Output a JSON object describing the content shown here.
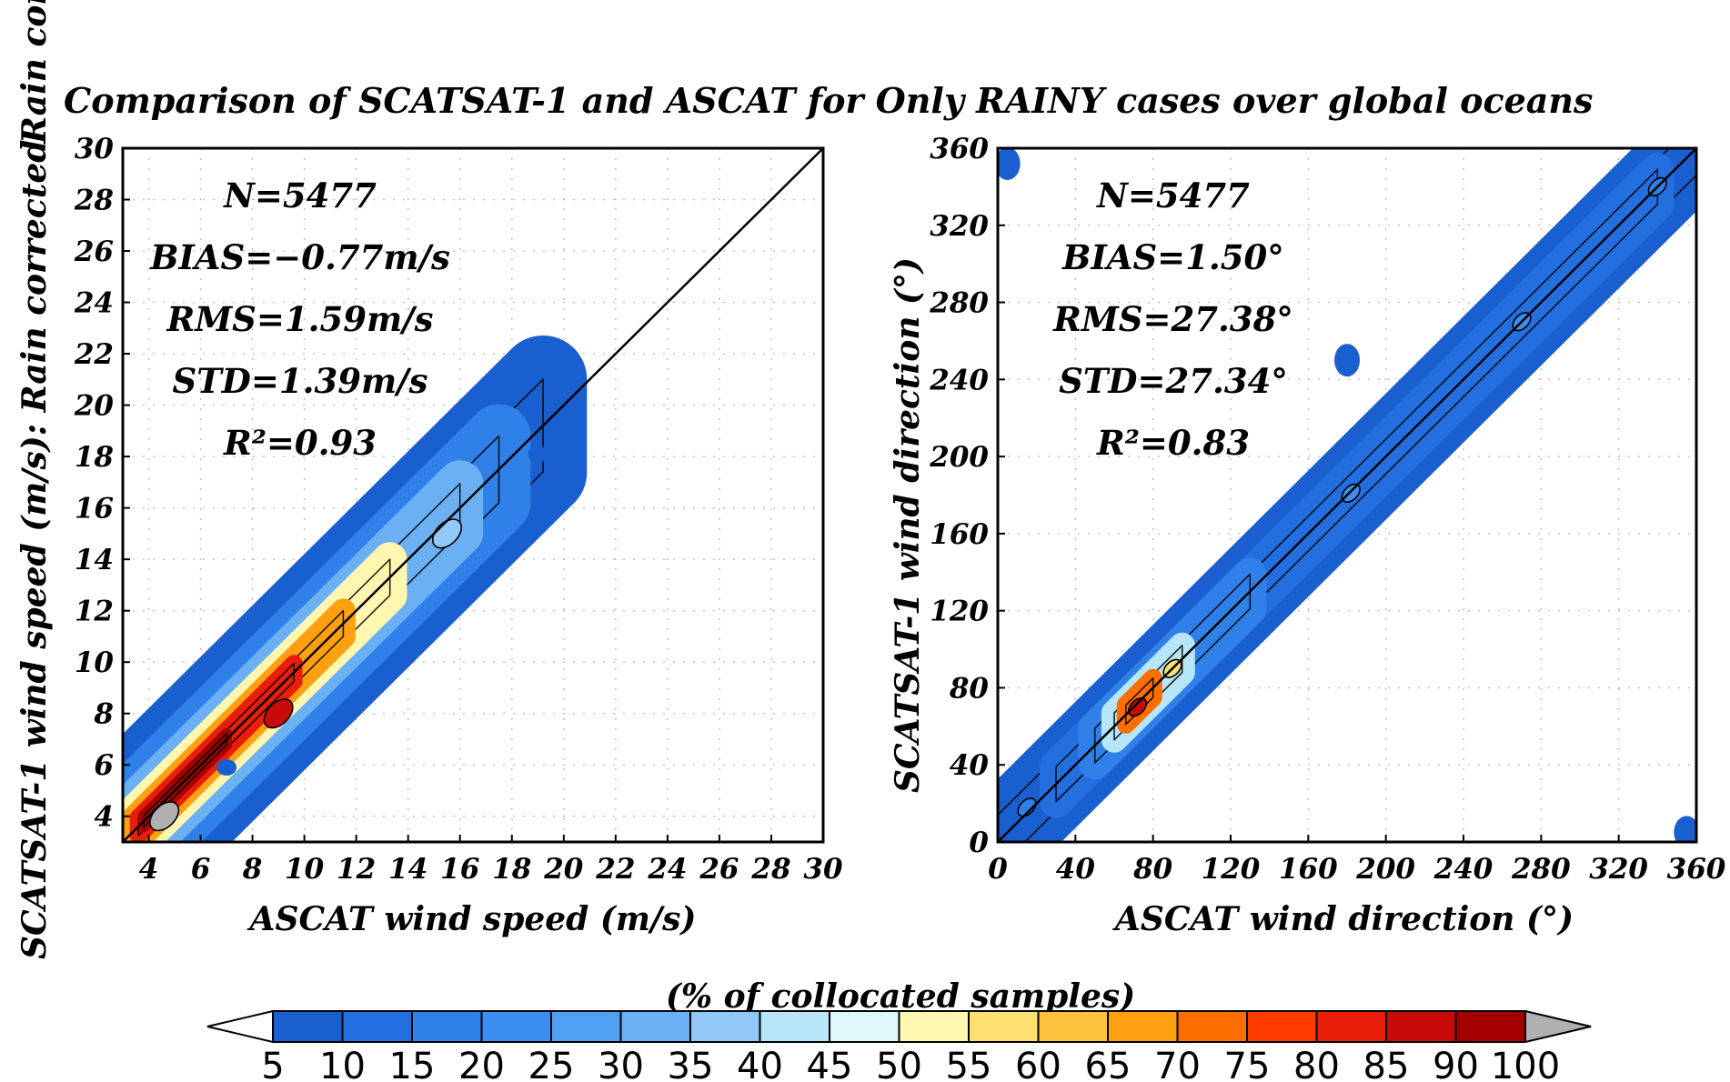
{
  "figure": {
    "title": "Comparison of SCATSAT-1 and ASCAT for Only RAINY cases over global oceans",
    "side_label": "Rain corrected",
    "colorbar_title": "(% of collocated samples)",
    "colorbar": {
      "levels": [
        "5",
        "10",
        "15",
        "20",
        "25",
        "30",
        "35",
        "40",
        "45",
        "50",
        "55",
        "60",
        "65",
        "70",
        "75",
        "80",
        "85",
        "90",
        "100"
      ],
      "colors": [
        "#1a5fcf",
        "#236fe0",
        "#2f80e8",
        "#3c8ff0",
        "#4f9ff2",
        "#6cb0f4",
        "#92c8f7",
        "#b6e6f7",
        "#dff6fb",
        "#fff7b0",
        "#ffe070",
        "#ffc23c",
        "#ffa010",
        "#ff6e00",
        "#ff3c00",
        "#e81e0a",
        "#c80a0a",
        "#a50000",
        "#b0b0b0"
      ]
    }
  },
  "chart_data": [
    {
      "type": "heatmap",
      "subtype": "density-contour",
      "title": "",
      "xlabel": "ASCAT wind speed (m/s)",
      "ylabel": "SCATSAT-1 wind speed (m/s): Rain corrected",
      "xlim": [
        3,
        30
      ],
      "ylim": [
        3,
        30
      ],
      "xticks": [
        4,
        6,
        8,
        10,
        12,
        14,
        16,
        18,
        20,
        22,
        24,
        26,
        28,
        30
      ],
      "yticks": [
        4,
        6,
        8,
        10,
        12,
        14,
        16,
        18,
        20,
        22,
        24,
        26,
        28,
        30
      ],
      "grid": true,
      "reference_line": "1:1",
      "stats": {
        "n": "N=5477",
        "bias": "BIAS=−0.77m/s",
        "rms": "RMS=1.59m/s",
        "std": "STD=1.39m/s",
        "r2": "R²=0.93"
      },
      "density_bands": [
        {
          "x": [
            3.0,
            19.2
          ],
          "half_width": 1.8,
          "level": 5
        },
        {
          "x": [
            3.0,
            17.5
          ],
          "half_width": 1.3,
          "level": 15
        },
        {
          "x": [
            3.0,
            16.0
          ],
          "half_width": 0.95,
          "level": 30
        },
        {
          "x": [
            3.2,
            13.3
          ],
          "half_width": 0.7,
          "level": 50
        },
        {
          "x": [
            3.4,
            11.5
          ],
          "half_width": 0.5,
          "level": 65
        },
        {
          "x": [
            3.6,
            9.6
          ],
          "half_width": 0.35,
          "level": 80
        },
        {
          "x": [
            3.8,
            7.0
          ],
          "half_width": 0.22,
          "level": 90
        }
      ],
      "peaks": [
        {
          "x": 4.6,
          "y": 4.0,
          "level": 100
        },
        {
          "x": 9.0,
          "y": 8.0,
          "level": 85
        },
        {
          "x": 15.5,
          "y": 15.0,
          "level": 35
        }
      ],
      "isolated_patches": [
        {
          "x": 7.0,
          "y": 5.9,
          "level": 5
        },
        {
          "x": 19.0,
          "y": 18.1,
          "level": 5
        }
      ]
    },
    {
      "type": "heatmap",
      "subtype": "density-contour",
      "title": "",
      "xlabel": "ASCAT wind direction (°)",
      "ylabel": "SCATSAT-1 wind direction (°)",
      "xlim": [
        0,
        360
      ],
      "ylim": [
        0,
        360
      ],
      "xticks": [
        0,
        40,
        80,
        120,
        160,
        200,
        240,
        280,
        320,
        360
      ],
      "yticks": [
        0,
        40,
        80,
        120,
        160,
        200,
        240,
        280,
        320,
        360
      ],
      "grid": true,
      "reference_line": "1:1",
      "stats": {
        "n": "N=5477",
        "bias": "BIAS=1.50°",
        "rms": "RMS=27.38°",
        "std": "STD=27.34°",
        "r2": "R²=0.83"
      },
      "density_bands": [
        {
          "x": [
            0,
            360
          ],
          "half_width": 14,
          "level": 5
        },
        {
          "x": [
            30,
            340
          ],
          "half_width": 9,
          "level": 10
        },
        {
          "x": [
            50,
            130
          ],
          "half_width": 9,
          "level": 15
        },
        {
          "x": [
            60,
            95
          ],
          "half_width": 7,
          "level": 40
        },
        {
          "x": [
            66,
            80
          ],
          "half_width": 5,
          "level": 70
        }
      ],
      "peaks": [
        {
          "x": 72,
          "y": 70,
          "level": 85
        },
        {
          "x": 90,
          "y": 90,
          "level": 55
        },
        {
          "x": 182,
          "y": 181,
          "level": 20
        },
        {
          "x": 270,
          "y": 270,
          "level": 20
        },
        {
          "x": 340,
          "y": 340,
          "level": 15
        },
        {
          "x": 15,
          "y": 18,
          "level": 15
        }
      ],
      "isolated_patches": [
        {
          "x": 5,
          "y": 352,
          "level": 5
        },
        {
          "x": 355,
          "y": 5,
          "level": 5
        },
        {
          "x": 180,
          "y": 250,
          "level": 5
        }
      ]
    }
  ]
}
